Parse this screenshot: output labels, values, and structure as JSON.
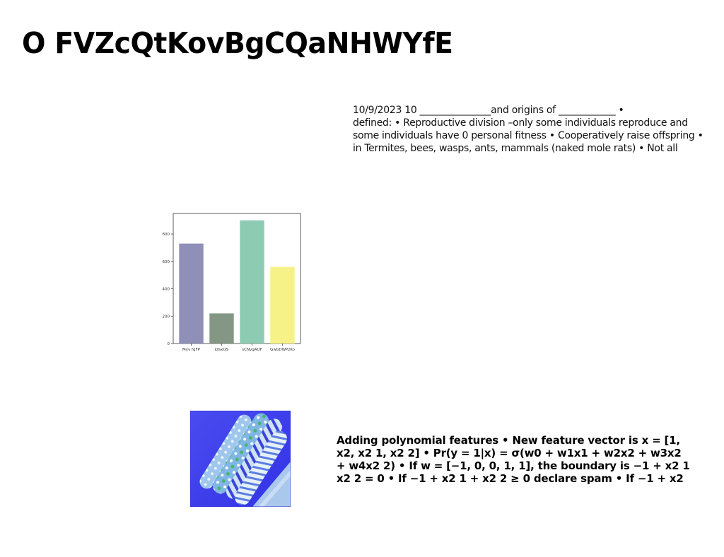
{
  "slide": {
    "title": "O FVZcQtKovBgCQaNHWYfE",
    "top_text_lines": [
      "10/9/2023 10 _______________and origins of ____________ •",
      "defined: • Reproductive division –only some individuals reproduce and",
      "some individuals have 0 personal fitness • Cooperatively raise offspring •",
      "in Termites, bees, wasps, ants, mammals (naked mole rats) • Not all"
    ],
    "bottom_text_lines": [
      "Adding polynomial features • New feature vector is x = [1,",
      "x2, x2 1, x2 2] • Pr(y = 1|x) = σ(w0 + w1x1 + w2x2 + w3x2",
      "+ w4x2 2) • If w = [−1, 0, 0, 1, 1], the boundary is −1 + x2 1",
      "x2 2 = 0 • If −1 + x2 1 + x2 2 ≥ 0 declare spam • If −1 + x2"
    ],
    "photo_icon": "wrapping-paper-rolls-photo"
  },
  "chart_data": {
    "type": "bar",
    "categories": [
      "Myv fgFP",
      "LYaxQS",
      "sCNvgAUF",
      "GwbDWPzKo"
    ],
    "values": [
      730,
      220,
      900,
      560
    ],
    "colors": [
      "#8f8fb8",
      "#849784",
      "#8ecbb3",
      "#f7f287"
    ],
    "yticks": [
      0,
      200,
      400,
      600,
      800
    ],
    "ylim": [
      0,
      950
    ],
    "grid": false,
    "title": "",
    "xlabel": "",
    "ylabel": ""
  }
}
